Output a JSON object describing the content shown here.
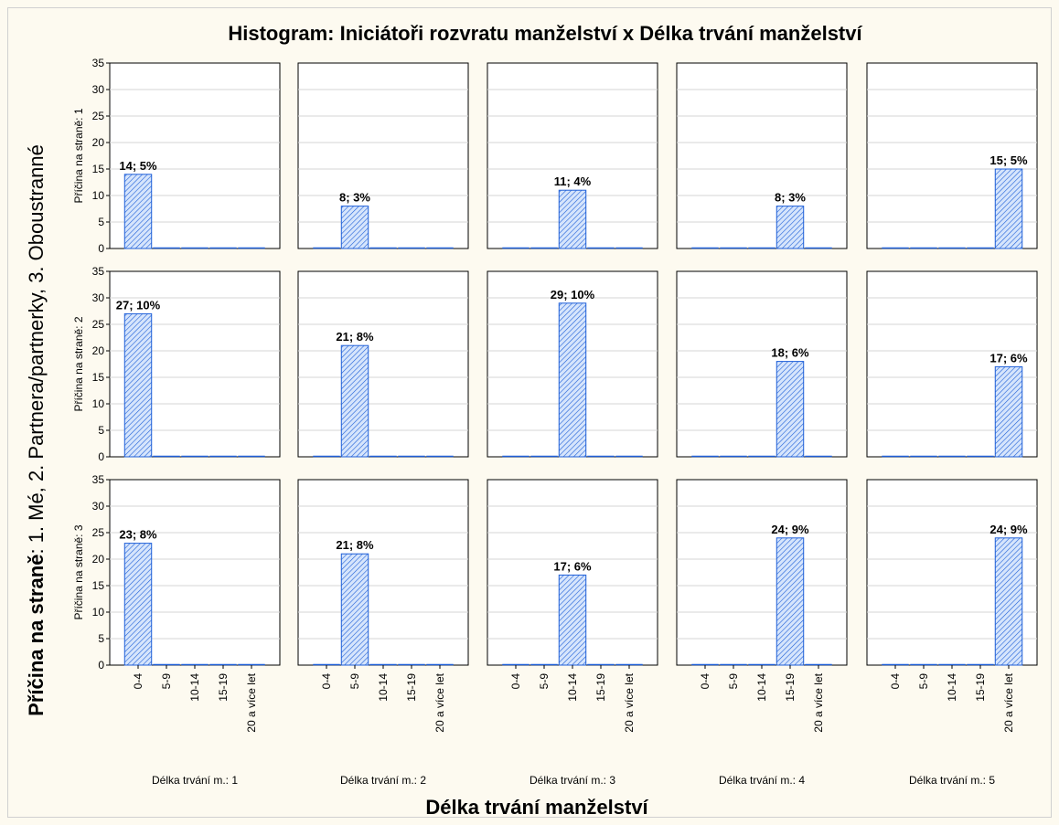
{
  "chart_data": {
    "type": "bar",
    "title": "Histogram: Iniciátoři rozvratu manželství x Délka trvání manželství",
    "xlabel": "Délka trvání manželství",
    "ylabel_bold": "Příčina na straně",
    "ylabel_rest": ": 1. Mé, 2. Partnera/partnerky, 3. Oboustranné",
    "categories": [
      "0-4",
      "5-9",
      "10-14",
      "15-19",
      "20 a více let"
    ],
    "ylim": [
      0,
      35
    ],
    "yticks": [
      0,
      5,
      10,
      15,
      20,
      25,
      30,
      35
    ],
    "row_labels": [
      "Příčina na straně: 1",
      "Příčina na straně: 2",
      "Příčina na straně: 3"
    ],
    "col_labels": [
      "Délka trvání m.: 1",
      "Délka trvání m.: 2",
      "Délka trvání m.: 3",
      "Délka trvání m.: 4",
      "Délka trvání m.: 5"
    ],
    "bar_fill": "#cfe0fb",
    "bar_stroke": "#1e5fd8",
    "grid": true,
    "panels": [
      [
        {
          "values": [
            14,
            0,
            0,
            0,
            0
          ],
          "label": "14; 5%"
        },
        {
          "values": [
            0,
            8,
            0,
            0,
            0
          ],
          "label": "8; 3%"
        },
        {
          "values": [
            0,
            0,
            11,
            0,
            0
          ],
          "label": "11; 4%"
        },
        {
          "values": [
            0,
            0,
            0,
            8,
            0
          ],
          "label": "8; 3%"
        },
        {
          "values": [
            0,
            0,
            0,
            0,
            15
          ],
          "label": "15; 5%"
        }
      ],
      [
        {
          "values": [
            27,
            0,
            0,
            0,
            0
          ],
          "label": "27; 10%"
        },
        {
          "values": [
            0,
            21,
            0,
            0,
            0
          ],
          "label": "21; 8%"
        },
        {
          "values": [
            0,
            0,
            29,
            0,
            0
          ],
          "label": "29; 10%"
        },
        {
          "values": [
            0,
            0,
            0,
            18,
            0
          ],
          "label": "18; 6%"
        },
        {
          "values": [
            0,
            0,
            0,
            0,
            17
          ],
          "label": "17; 6%"
        }
      ],
      [
        {
          "values": [
            23,
            0,
            0,
            0,
            0
          ],
          "label": "23; 8%"
        },
        {
          "values": [
            0,
            21,
            0,
            0,
            0
          ],
          "label": "21; 8%"
        },
        {
          "values": [
            0,
            0,
            17,
            0,
            0
          ],
          "label": "17; 6%"
        },
        {
          "values": [
            0,
            0,
            0,
            24,
            0
          ],
          "label": "24; 9%"
        },
        {
          "values": [
            0,
            0,
            0,
            0,
            24
          ],
          "label": "24; 9%"
        }
      ]
    ]
  }
}
